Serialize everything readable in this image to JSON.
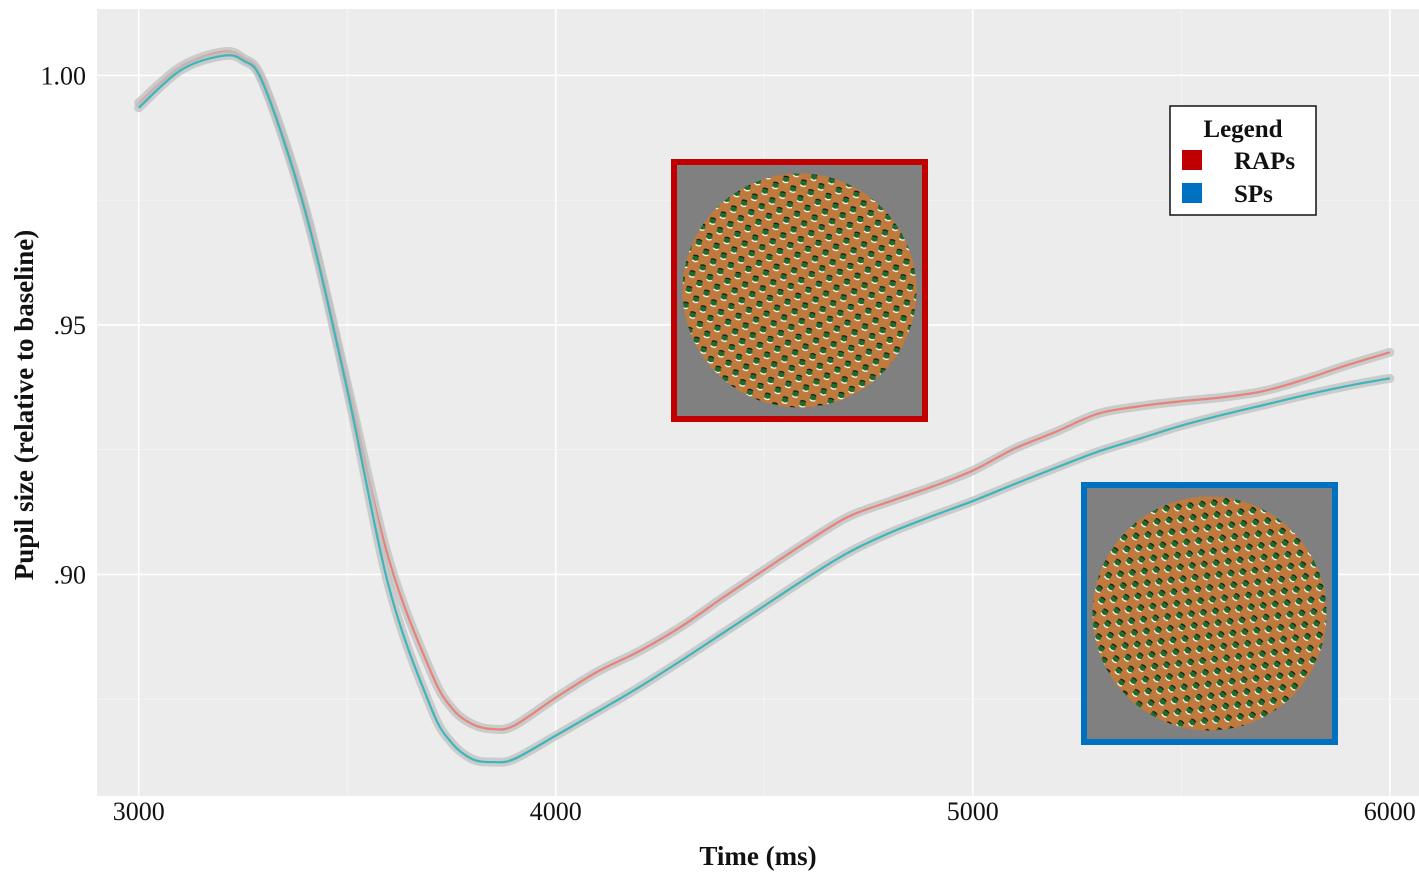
{
  "chart_data": {
    "type": "line",
    "xlabel": "Time (ms)",
    "ylabel": "Pupil size (relative to baseline)",
    "xlim": [
      2900,
      6070
    ],
    "ylim": [
      0.8556,
      1.0133
    ],
    "x_ticks": [
      3000,
      4000,
      5000,
      6000
    ],
    "x_tick_labels": [
      "3000",
      "4000",
      "5000",
      "6000"
    ],
    "y_ticks": [
      0.9,
      0.95,
      1.0
    ],
    "y_tick_labels": [
      ".90",
      ".95",
      "1.00"
    ],
    "grid": true,
    "confidence_band": true,
    "legend": {
      "title": "Legend",
      "position": "top-right",
      "entries": [
        "RAPs",
        "SPs"
      ]
    },
    "series": [
      {
        "name": "RAPs",
        "color": "#E8827A",
        "legend_color": "#C00000",
        "x": [
          3000,
          3100,
          3200,
          3250,
          3300,
          3400,
          3500,
          3600,
          3700,
          3750,
          3800,
          3850,
          3900,
          4000,
          4100,
          4200,
          4300,
          4400,
          4500,
          4600,
          4700,
          4800,
          4900,
          5000,
          5100,
          5200,
          5300,
          5400,
          5500,
          5600,
          5700,
          5800,
          5900,
          6000
        ],
        "values": [
          0.9945,
          1.0017,
          1.0047,
          1.0035,
          0.9985,
          0.9733,
          0.9382,
          0.903,
          0.8806,
          0.8733,
          0.87,
          0.869,
          0.8697,
          0.8753,
          0.8805,
          0.8846,
          0.8895,
          0.8953,
          0.9009,
          0.9064,
          0.9115,
          0.9146,
          0.9175,
          0.9208,
          0.9252,
          0.9286,
          0.9322,
          0.9337,
          0.9347,
          0.9355,
          0.9368,
          0.9392,
          0.942,
          0.9445
        ]
      },
      {
        "name": "SPs",
        "color": "#3CB6BC",
        "legend_color": "#0070C0",
        "x": [
          3000,
          3100,
          3200,
          3250,
          3300,
          3400,
          3500,
          3600,
          3700,
          3750,
          3800,
          3850,
          3900,
          4000,
          4100,
          4200,
          4300,
          4400,
          4500,
          4600,
          4700,
          4800,
          4900,
          5000,
          5100,
          5200,
          5300,
          5400,
          5500,
          5600,
          5700,
          5800,
          5900,
          6000
        ],
        "values": [
          0.9935,
          1.001,
          1.0039,
          1.003,
          0.998,
          0.9725,
          0.937,
          0.8975,
          0.8735,
          0.8663,
          0.863,
          0.8624,
          0.863,
          0.8677,
          0.8725,
          0.8774,
          0.8827,
          0.8882,
          0.8937,
          0.8992,
          0.9043,
          0.9083,
          0.9116,
          0.9147,
          0.9181,
          0.9214,
          0.9246,
          0.9272,
          0.9298,
          0.932,
          0.934,
          0.936,
          0.9378,
          0.9393
        ]
      }
    ],
    "insets": [
      {
        "name": "RAPs",
        "border_color": "#C00000"
      },
      {
        "name": "SPs",
        "border_color": "#0070C0"
      }
    ]
  }
}
